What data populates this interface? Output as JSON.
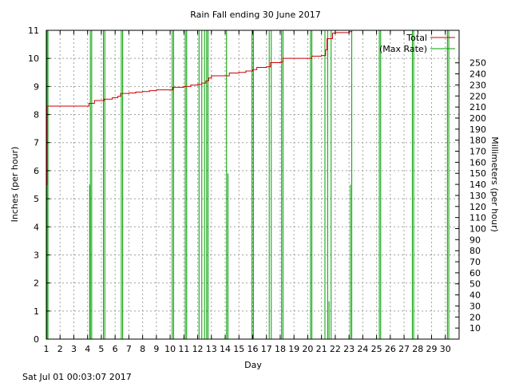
{
  "chart_data": {
    "type": "line",
    "title": "Rain Fall ending 30 June 2017",
    "xlabel": "Day",
    "ylabel": "Inches (per hour)",
    "y2label": "Millimeters (per hour)",
    "footer": "Sat Jul 01 00:03:07 2017",
    "xlim": [
      1,
      31
    ],
    "ylim": [
      0,
      11
    ],
    "y2lim": [
      0,
      279.4
    ],
    "x_ticks": [
      "1",
      "2",
      "3",
      "4",
      "5",
      "6",
      "7",
      "8",
      "9",
      "10",
      "11",
      "12",
      "13",
      "14",
      "15",
      "16",
      "17",
      "18",
      "19",
      "20",
      "21",
      "22",
      "23",
      "24",
      "25",
      "26",
      "27",
      "28",
      "29",
      "30"
    ],
    "y_ticks": [
      "0",
      "1",
      "2",
      "3",
      "4",
      "5",
      "6",
      "7",
      "8",
      "9",
      "10",
      "11"
    ],
    "y2_ticks": [
      "10",
      "20",
      "30",
      "40",
      "50",
      "60",
      "70",
      "80",
      "90",
      "100",
      "110",
      "120",
      "130",
      "140",
      "150",
      "160",
      "170",
      "180",
      "190",
      "200",
      "210",
      "220",
      "230",
      "240",
      "250"
    ],
    "grid": true,
    "legend_position": "top-right",
    "series": [
      {
        "name": "Total",
        "color": "#cc0000",
        "points": [
          [
            1.0,
            0
          ],
          [
            1.0,
            5.5
          ],
          [
            1.05,
            8.3
          ],
          [
            2.0,
            8.3
          ],
          [
            3.0,
            8.3
          ],
          [
            4.0,
            8.3
          ],
          [
            4.1,
            8.4
          ],
          [
            4.5,
            8.5
          ],
          [
            5.0,
            8.5
          ],
          [
            5.2,
            8.55
          ],
          [
            5.8,
            8.6
          ],
          [
            6.2,
            8.65
          ],
          [
            6.4,
            8.75
          ],
          [
            7.0,
            8.77
          ],
          [
            7.5,
            8.8
          ],
          [
            8.0,
            8.82
          ],
          [
            8.5,
            8.85
          ],
          [
            9.0,
            8.88
          ],
          [
            10.0,
            8.88
          ],
          [
            10.2,
            8.97
          ],
          [
            11.0,
            9.0
          ],
          [
            11.5,
            9.05
          ],
          [
            12.0,
            9.07
          ],
          [
            12.3,
            9.12
          ],
          [
            12.6,
            9.2
          ],
          [
            12.8,
            9.3
          ],
          [
            13.0,
            9.38
          ],
          [
            14.0,
            9.38
          ],
          [
            14.3,
            9.48
          ],
          [
            15.0,
            9.5
          ],
          [
            15.5,
            9.55
          ],
          [
            16.0,
            9.6
          ],
          [
            16.3,
            9.68
          ],
          [
            17.0,
            9.7
          ],
          [
            17.3,
            9.85
          ],
          [
            18.0,
            9.87
          ],
          [
            18.2,
            10.0
          ],
          [
            19.0,
            10.0
          ],
          [
            20.0,
            10.0
          ],
          [
            20.3,
            10.08
          ],
          [
            21.0,
            10.1
          ],
          [
            21.3,
            10.3
          ],
          [
            21.4,
            10.7
          ],
          [
            21.8,
            10.9
          ],
          [
            22.0,
            10.92
          ],
          [
            23.0,
            10.95
          ],
          [
            23.2,
            11.0
          ]
        ]
      },
      {
        "name": "(Max Rate)",
        "color": "#00a000",
        "spikes": [
          [
            1.0,
            5.5
          ],
          [
            1.05,
            11
          ],
          [
            1.12,
            11
          ],
          [
            4.15,
            5.5
          ],
          [
            4.2,
            11
          ],
          [
            4.3,
            11
          ],
          [
            5.15,
            11
          ],
          [
            5.25,
            11
          ],
          [
            6.45,
            11
          ],
          [
            6.55,
            11
          ],
          [
            10.15,
            11
          ],
          [
            10.25,
            11
          ],
          [
            11.1,
            11
          ],
          [
            11.2,
            11
          ],
          [
            12.1,
            11
          ],
          [
            12.3,
            11
          ],
          [
            12.5,
            11
          ],
          [
            12.65,
            11
          ],
          [
            12.75,
            11
          ],
          [
            14.1,
            11
          ],
          [
            14.2,
            5.9
          ],
          [
            15.95,
            11
          ],
          [
            16.05,
            11
          ],
          [
            17.2,
            11
          ],
          [
            17.35,
            11
          ],
          [
            18.1,
            11
          ],
          [
            18.2,
            11
          ],
          [
            20.2,
            11
          ],
          [
            20.3,
            11
          ],
          [
            21.25,
            11
          ],
          [
            21.45,
            11
          ],
          [
            21.55,
            1.35
          ],
          [
            21.7,
            11
          ],
          [
            23.1,
            5.5
          ],
          [
            23.2,
            11
          ],
          [
            25.2,
            11
          ],
          [
            25.3,
            11
          ],
          [
            27.6,
            11
          ],
          [
            27.7,
            11
          ],
          [
            30.15,
            11
          ],
          [
            30.25,
            11
          ]
        ]
      }
    ]
  }
}
